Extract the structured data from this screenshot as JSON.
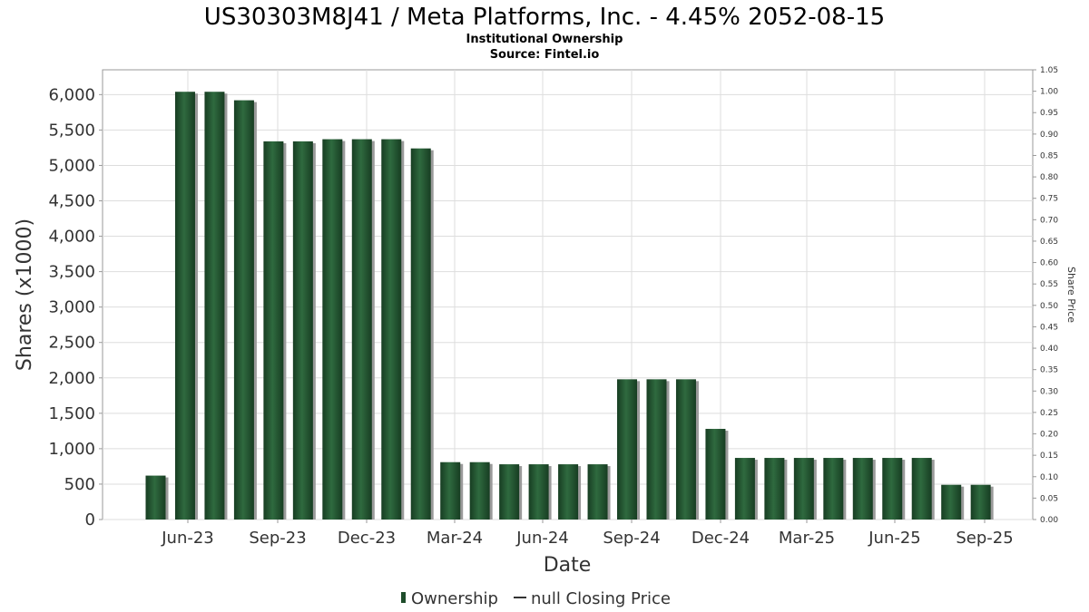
{
  "chart_data": {
    "type": "bar",
    "title": "US30303M8J41 / Meta Platforms, Inc. - 4.45% 2052-08-15",
    "subtitle_lines": [
      "Institutional Ownership",
      "Source: Fintel.io"
    ],
    "xlabel": "Date",
    "ylabel": "Shares (x1000)",
    "ylabel_right": "Share Price",
    "ylim": [
      0,
      6350
    ],
    "ylim_right": [
      0,
      1.05
    ],
    "y_ticks": [
      0,
      500,
      1000,
      1500,
      2000,
      2500,
      3000,
      3500,
      4000,
      4500,
      5000,
      5500,
      6000
    ],
    "y_tick_labels": [
      "0",
      "500",
      "1,000",
      "1,500",
      "2,000",
      "2,500",
      "3,000",
      "3,500",
      "4,000",
      "4,500",
      "5,000",
      "5,500",
      "6,000"
    ],
    "y_right_ticks": [
      0,
      0.05,
      0.1,
      0.15,
      0.2,
      0.25,
      0.3,
      0.35,
      0.4,
      0.45,
      0.5,
      0.55,
      0.6,
      0.65,
      0.7,
      0.75,
      0.8,
      0.85,
      0.9,
      0.95,
      1.0,
      1.05
    ],
    "y_right_tick_labels": [
      "0.00",
      "0.05",
      "0.10",
      "0.15",
      "0.20",
      "0.25",
      "0.30",
      "0.35",
      "0.40",
      "0.45",
      "0.50",
      "0.55",
      "0.60",
      "0.65",
      "0.70",
      "0.75",
      "0.80",
      "0.85",
      "0.90",
      "0.95",
      "1.00",
      "1.05"
    ],
    "x_ticks": [
      "Jun-23",
      "Sep-23",
      "Dec-23",
      "Mar-24",
      "Jun-24",
      "Sep-24",
      "Dec-24",
      "Mar-25",
      "Jun-25",
      "Sep-25"
    ],
    "grid": true,
    "legend_position": "bottom",
    "series": [
      {
        "name": "Ownership",
        "color": "#1e4d2b",
        "values": [
          620,
          6040,
          6040,
          5920,
          5340,
          5340,
          5370,
          5370,
          5370,
          5240,
          810,
          810,
          780,
          780,
          780,
          780,
          1980,
          1980,
          1980,
          1280,
          870,
          870,
          870,
          870,
          870,
          870,
          870,
          490,
          490
        ]
      },
      {
        "name": "null Closing Price",
        "color": "#333333",
        "values": []
      }
    ]
  }
}
